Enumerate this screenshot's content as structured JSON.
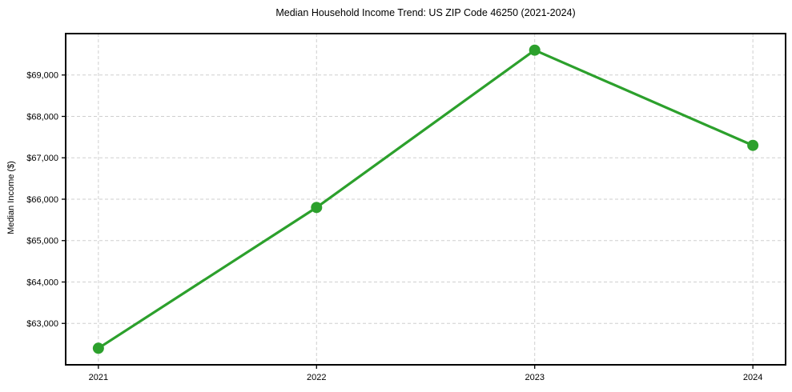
{
  "chart_data": {
    "type": "line",
    "title": "Median Household Income Trend: US ZIP Code 46250 (2021-2024)",
    "xlabel": "",
    "ylabel": "Median Income ($)",
    "categories": [
      "2021",
      "2022",
      "2023",
      "2024"
    ],
    "values": [
      62400,
      65800,
      69600,
      67300
    ],
    "ylim": [
      62000,
      70000
    ],
    "yticks": [
      63000,
      64000,
      65000,
      66000,
      67000,
      68000,
      69000
    ],
    "ytick_labels": [
      "$63,000",
      "$64,000",
      "$65,000",
      "$66,000",
      "$67,000",
      "$68,000",
      "$69,000"
    ],
    "grid": true,
    "grid_style": "dashed",
    "legend": false,
    "marker": "circle",
    "line_color": "#2ca02c",
    "grid_color": "#cfcfcf",
    "axis_color": "#000000",
    "background": "#ffffff"
  }
}
